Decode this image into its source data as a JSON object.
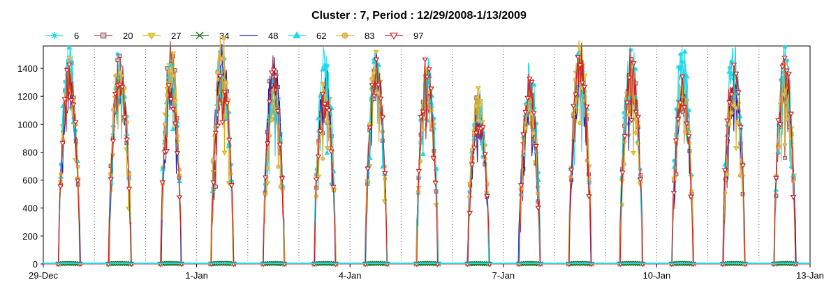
{
  "chart_data": {
    "type": "line",
    "title": "Cluster : 7, Period : 12/29/2008-1/13/2009",
    "xlabel": "",
    "ylabel": "",
    "ylim": [
      0,
      1560
    ],
    "yticks": [
      0,
      200,
      400,
      600,
      800,
      1000,
      1200,
      1400
    ],
    "xlim": [
      0,
      15
    ],
    "xticks": [
      {
        "x": 0,
        "label": "29-Dec"
      },
      {
        "x": 3,
        "label": "1-Jan"
      },
      {
        "x": 6,
        "label": "4-Jan"
      },
      {
        "x": 9,
        "label": "7-Jan"
      },
      {
        "x": 12,
        "label": "10-Jan"
      },
      {
        "x": 15,
        "label": "13-Jan"
      }
    ],
    "grid": {
      "vertical_dotted": true,
      "horizontal": false
    },
    "legend_position": "top-left",
    "day_peaks": [
      {
        "day": 0,
        "peak": 1420,
        "start": 0.3,
        "end": 0.72
      },
      {
        "day": 1,
        "peak": 1440,
        "start": 0.28,
        "end": 0.72
      },
      {
        "day": 2,
        "peak": 1450,
        "start": 0.3,
        "end": 0.7
      },
      {
        "day": 3,
        "peak": 1500,
        "start": 0.28,
        "end": 0.72
      },
      {
        "day": 4,
        "peak": 1350,
        "start": 0.3,
        "end": 0.72
      },
      {
        "day": 5,
        "peak": 1420,
        "start": 0.3,
        "end": 0.72
      },
      {
        "day": 6,
        "peak": 1420,
        "start": 0.3,
        "end": 0.72
      },
      {
        "day": 7,
        "peak": 1400,
        "start": 0.3,
        "end": 0.72
      },
      {
        "day": 8,
        "peak": 1150,
        "start": 0.3,
        "end": 0.72
      },
      {
        "day": 9,
        "peak": 1300,
        "start": 0.3,
        "end": 0.72
      },
      {
        "day": 10,
        "peak": 1450,
        "start": 0.28,
        "end": 0.72
      },
      {
        "day": 11,
        "peak": 1480,
        "start": 0.28,
        "end": 0.72
      },
      {
        "day": 12,
        "peak": 1430,
        "start": 0.3,
        "end": 0.72
      },
      {
        "day": 13,
        "peak": 1420,
        "start": 0.3,
        "end": 0.72
      },
      {
        "day": 14,
        "peak": 1450,
        "start": 0.3,
        "end": 0.72
      }
    ],
    "series": [
      {
        "name": "6",
        "color": "#22d8e8",
        "marker": "star"
      },
      {
        "name": "20",
        "color": "#a04040",
        "marker": "square",
        "fill": "#c8c8d8"
      },
      {
        "name": "27",
        "color": "#d8b020",
        "marker": "triangle-down",
        "fill": "#e8d040"
      },
      {
        "name": "34",
        "color": "#207020",
        "marker": "x"
      },
      {
        "name": "48",
        "color": "#2020a0",
        "marker": "none"
      },
      {
        "name": "62",
        "color": "#22d8e8",
        "marker": "triangle-up"
      },
      {
        "name": "83",
        "color": "#d8a840",
        "marker": "circle",
        "fill": "#e0c060"
      },
      {
        "name": "97",
        "color": "#d02020",
        "marker": "triangle-down-open"
      }
    ]
  }
}
